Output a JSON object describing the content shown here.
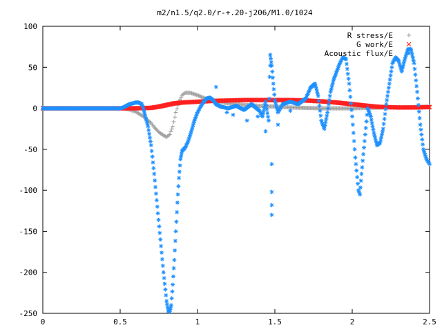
{
  "chart_data": {
    "type": "scatter",
    "title": "m2/n1.5/q2.0/r-+.20-j206/M1.0/1024",
    "xlabel": "",
    "ylabel": "",
    "xlim": [
      0,
      2.5
    ],
    "ylim": [
      -250,
      100
    ],
    "x_ticks": [
      "0",
      "0.5",
      "1",
      "1.5",
      "2",
      "2.5"
    ],
    "x_tick_values": [
      0,
      0.5,
      1,
      1.5,
      2,
      2.5
    ],
    "y_ticks": [
      "100",
      "50",
      "0",
      "-50",
      "-100",
      "-150",
      "-200",
      "-250"
    ],
    "y_tick_values": [
      100,
      50,
      0,
      -50,
      -100,
      -150,
      -200,
      -250
    ],
    "grid": false,
    "legend_position": "top-right",
    "series": [
      {
        "name": "R stress/E",
        "marker": "+",
        "color": "#a0a0a0",
        "points": [
          [
            0,
            0
          ],
          [
            0.5,
            0
          ],
          [
            0.55,
            -1
          ],
          [
            0.6,
            -4
          ],
          [
            0.65,
            -10
          ],
          [
            0.7,
            -18
          ],
          [
            0.72,
            -23
          ],
          [
            0.75,
            -29
          ],
          [
            0.78,
            -33
          ],
          [
            0.8,
            -35
          ],
          [
            0.82,
            -32
          ],
          [
            0.84,
            -22
          ],
          [
            0.86,
            -5
          ],
          [
            0.88,
            8
          ],
          [
            0.9,
            16
          ],
          [
            0.92,
            19
          ],
          [
            0.95,
            19
          ],
          [
            1.0,
            16
          ],
          [
            1.05,
            12
          ],
          [
            1.1,
            9
          ],
          [
            1.2,
            6
          ],
          [
            1.3,
            4
          ],
          [
            1.4,
            3
          ],
          [
            1.5,
            2
          ],
          [
            1.6,
            1
          ],
          [
            1.7,
            0.5
          ],
          [
            1.8,
            0
          ],
          [
            1.9,
            0
          ],
          [
            2.0,
            0
          ],
          [
            2.1,
            0.5
          ],
          [
            2.2,
            1
          ],
          [
            2.3,
            1
          ],
          [
            2.4,
            1.5
          ],
          [
            2.5,
            2
          ]
        ]
      },
      {
        "name": "G work/E",
        "marker": "x",
        "color": "#ff2020",
        "points": [
          [
            0,
            0
          ],
          [
            0.5,
            0
          ],
          [
            0.6,
            0
          ],
          [
            0.7,
            0.5
          ],
          [
            0.75,
            2
          ],
          [
            0.8,
            4
          ],
          [
            0.85,
            6
          ],
          [
            0.9,
            7
          ],
          [
            1.0,
            8
          ],
          [
            1.1,
            9
          ],
          [
            1.2,
            9.5
          ],
          [
            1.3,
            10
          ],
          [
            1.4,
            10
          ],
          [
            1.5,
            10
          ],
          [
            1.6,
            10
          ],
          [
            1.7,
            9.5
          ],
          [
            1.8,
            8.5
          ],
          [
            1.9,
            7
          ],
          [
            1.95,
            6
          ],
          [
            2.0,
            5
          ],
          [
            2.05,
            4
          ],
          [
            2.1,
            3
          ],
          [
            2.15,
            2
          ],
          [
            2.2,
            1.5
          ],
          [
            2.3,
            1
          ],
          [
            2.4,
            1
          ],
          [
            2.5,
            1.5
          ]
        ]
      },
      {
        "name": "Acoustic flux/E",
        "marker": "*",
        "color": "#1e90ff",
        "points": [
          [
            0,
            0
          ],
          [
            0.5,
            0
          ],
          [
            0.52,
            1
          ],
          [
            0.54,
            3
          ],
          [
            0.56,
            5
          ],
          [
            0.58,
            6
          ],
          [
            0.6,
            7
          ],
          [
            0.62,
            7
          ],
          [
            0.64,
            5
          ],
          [
            0.65,
            0
          ],
          [
            0.66,
            -8
          ],
          [
            0.68,
            -22
          ],
          [
            0.7,
            -45
          ],
          [
            0.72,
            -80
          ],
          [
            0.74,
            -120
          ],
          [
            0.76,
            -160
          ],
          [
            0.78,
            -200
          ],
          [
            0.8,
            -235
          ],
          [
            0.81,
            -247
          ],
          [
            0.82,
            -248
          ],
          [
            0.83,
            -240
          ],
          [
            0.84,
            -215
          ],
          [
            0.85,
            -185
          ],
          [
            0.86,
            -150
          ],
          [
            0.87,
            -115
          ],
          [
            0.88,
            -85
          ],
          [
            0.89,
            -62
          ],
          [
            0.9,
            -52
          ],
          [
            0.92,
            -48
          ],
          [
            0.94,
            -40
          ],
          [
            0.96,
            -28
          ],
          [
            0.98,
            -15
          ],
          [
            1.0,
            -5
          ],
          [
            1.02,
            2
          ],
          [
            1.04,
            8
          ],
          [
            1.06,
            12
          ],
          [
            1.08,
            13
          ],
          [
            1.1,
            10
          ],
          [
            1.12,
            5
          ],
          [
            1.15,
            2
          ],
          [
            1.2,
            0
          ],
          [
            1.25,
            3
          ],
          [
            1.3,
            -2
          ],
          [
            1.35,
            5
          ],
          [
            1.4,
            -3
          ],
          [
            1.42,
            -10
          ],
          [
            1.44,
            8
          ],
          [
            1.46,
            -15
          ],
          [
            1.47,
            65
          ],
          [
            1.48,
            52
          ],
          [
            1.49,
            30
          ],
          [
            1.5,
            10
          ],
          [
            1.52,
            -5
          ],
          [
            1.55,
            5
          ],
          [
            1.6,
            8
          ],
          [
            1.65,
            5
          ],
          [
            1.7,
            12
          ],
          [
            1.73,
            25
          ],
          [
            1.76,
            30
          ],
          [
            1.78,
            15
          ],
          [
            1.8,
            -15
          ],
          [
            1.82,
            -25
          ],
          [
            1.84,
            -5
          ],
          [
            1.86,
            20
          ],
          [
            1.88,
            35
          ],
          [
            1.9,
            45
          ],
          [
            1.92,
            55
          ],
          [
            1.94,
            62
          ],
          [
            1.96,
            60
          ],
          [
            1.98,
            30
          ],
          [
            2.0,
            -10
          ],
          [
            2.02,
            -60
          ],
          [
            2.04,
            -100
          ],
          [
            2.05,
            -105
          ],
          [
            2.06,
            -80
          ],
          [
            2.08,
            -40
          ],
          [
            2.1,
            0
          ],
          [
            2.12,
            -10
          ],
          [
            2.14,
            -30
          ],
          [
            2.16,
            -45
          ],
          [
            2.18,
            -42
          ],
          [
            2.2,
            -25
          ],
          [
            2.22,
            5
          ],
          [
            2.24,
            30
          ],
          [
            2.26,
            55
          ],
          [
            2.28,
            62
          ],
          [
            2.3,
            58
          ],
          [
            2.32,
            45
          ],
          [
            2.34,
            60
          ],
          [
            2.36,
            72
          ],
          [
            2.38,
            72
          ],
          [
            2.4,
            55
          ],
          [
            2.42,
            20
          ],
          [
            2.44,
            -20
          ],
          [
            2.46,
            -50
          ],
          [
            2.48,
            -62
          ],
          [
            2.5,
            -68
          ]
        ]
      }
    ],
    "outliers": [
      {
        "series": "Acoustic flux/E",
        "points": [
          [
            1.47,
            65
          ],
          [
            1.47,
            52
          ],
          [
            1.48,
            -68
          ],
          [
            1.48,
            -102
          ],
          [
            1.48,
            -118
          ],
          [
            1.48,
            -130
          ],
          [
            1.12,
            26
          ],
          [
            1.19,
            -5
          ],
          [
            1.23,
            -8
          ],
          [
            1.32,
            -15
          ],
          [
            1.39,
            -10
          ],
          [
            1.44,
            -28
          ],
          [
            1.52,
            -20
          ],
          [
            1.6,
            -3
          ]
        ]
      }
    ]
  }
}
